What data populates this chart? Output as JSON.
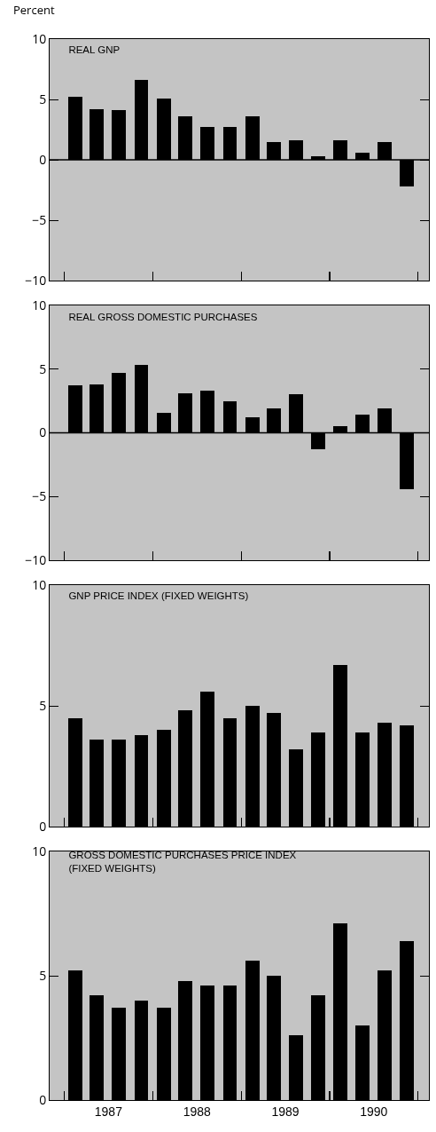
{
  "chart_data": [
    {
      "type": "bar",
      "title": "REAL GNP",
      "ylabel": "Percent",
      "color": "#000000",
      "x": [
        "1987-02-15",
        "1987-05-15",
        "1987-08-15",
        "1987-11-15",
        "1988-02-15",
        "1988-05-15",
        "1988-08-15",
        "1988-11-15",
        "1989-02-15",
        "1989-05-15",
        "1989-08-15",
        "1989-11-15",
        "1990-02-15",
        "1990-05-15",
        "1990-08-15",
        "1990-11-15"
      ],
      "values": [
        5.2,
        4.2,
        4.1,
        6.6,
        5.1,
        3.6,
        2.7,
        2.7,
        3.6,
        1.5,
        1.6,
        0.3,
        1.6,
        0.6,
        1.5,
        -2.2
      ],
      "xlim": [
        "1986-11-01",
        "1991-02-15"
      ],
      "xticks": [
        {
          "value": "1987-01-01",
          "label": null
        },
        {
          "value": "1988-01-01",
          "label": null
        },
        {
          "value": "1989-01-01",
          "label": null
        },
        {
          "value": "1990-01-01",
          "label": null
        },
        {
          "value": "1991-01-01",
          "label": null
        }
      ],
      "ylim": [
        -10,
        10
      ],
      "yticks": [
        -10,
        -5,
        0,
        5,
        10
      ],
      "tick_labels": "y",
      "grid": false,
      "ref_lines": [
        {
          "axis": "y",
          "value": 0,
          "color": "#000000"
        }
      ]
    },
    {
      "type": "bar",
      "title": "REAL GROSS DOMESTIC PURCHASES",
      "color": "#000000",
      "x": [
        "1987-02-15",
        "1987-05-15",
        "1987-08-15",
        "1987-11-15",
        "1988-02-15",
        "1988-05-15",
        "1988-08-15",
        "1988-11-15",
        "1989-02-15",
        "1989-05-15",
        "1989-08-15",
        "1989-11-15",
        "1990-02-15",
        "1990-05-15",
        "1990-08-15",
        "1990-11-15"
      ],
      "values": [
        3.7,
        3.8,
        4.7,
        5.3,
        1.6,
        3.1,
        3.3,
        2.5,
        1.2,
        1.9,
        3.0,
        -1.3,
        0.5,
        1.4,
        1.9,
        -4.4
      ],
      "xlim": [
        "1986-11-01",
        "1991-02-15"
      ],
      "xticks": [
        {
          "value": "1987-01-01",
          "label": null
        },
        {
          "value": "1988-01-01",
          "label": null
        },
        {
          "value": "1989-01-01",
          "label": null
        },
        {
          "value": "1990-01-01",
          "label": null
        },
        {
          "value": "1991-01-01",
          "label": null
        }
      ],
      "ylim": [
        -10,
        10
      ],
      "yticks": [
        -10,
        -5,
        0,
        5,
        10
      ],
      "tick_labels": "y",
      "grid": false,
      "ref_lines": [
        {
          "axis": "y",
          "value": 0,
          "color": "#000000"
        }
      ]
    },
    {
      "type": "bar",
      "title": "GNP PRICE INDEX (FIXED WEIGHTS)",
      "color": "#000000",
      "x": [
        "1987-02-15",
        "1987-05-15",
        "1987-08-15",
        "1987-11-15",
        "1988-02-15",
        "1988-05-15",
        "1988-08-15",
        "1988-11-15",
        "1989-02-15",
        "1989-05-15",
        "1989-08-15",
        "1989-11-15",
        "1990-02-15",
        "1990-05-15",
        "1990-08-15",
        "1990-11-15"
      ],
      "values": [
        4.5,
        3.6,
        3.6,
        3.8,
        4.0,
        4.8,
        5.6,
        4.5,
        5.0,
        4.7,
        3.2,
        3.9,
        6.7,
        3.9,
        4.3,
        4.2
      ],
      "xlim": [
        "1986-11-01",
        "1991-02-15"
      ],
      "xticks": [
        {
          "value": "1987-01-01",
          "label": null
        },
        {
          "value": "1988-01-01",
          "label": null
        },
        {
          "value": "1989-01-01",
          "label": null
        },
        {
          "value": "1990-01-01",
          "label": null
        },
        {
          "value": "1991-01-01",
          "label": null
        }
      ],
      "ylim": [
        0,
        10
      ],
      "yticks": [
        0,
        5,
        10
      ],
      "tick_labels": "y",
      "grid": false
    },
    {
      "type": "bar",
      "title": "GROSS DOMESTIC PURCHASES PRICE INDEX\n(FIXED WEIGHTS)",
      "color": "#000000",
      "x": [
        "1987-02-15",
        "1987-05-15",
        "1987-08-15",
        "1987-11-15",
        "1988-02-15",
        "1988-05-15",
        "1988-08-15",
        "1988-11-15",
        "1989-02-15",
        "1989-05-15",
        "1989-08-15",
        "1989-11-15",
        "1990-02-15",
        "1990-05-15",
        "1990-08-15",
        "1990-11-15"
      ],
      "values": [
        5.2,
        4.2,
        3.7,
        4.0,
        3.7,
        4.8,
        4.6,
        4.6,
        5.6,
        5.0,
        2.6,
        4.2,
        7.1,
        3.0,
        5.2,
        6.4
      ],
      "xlim": [
        "1986-11-01",
        "1991-02-15"
      ],
      "xticks": [
        {
          "value": "1987-01-01",
          "label": null
        },
        {
          "value": "1987-07-02",
          "label": "1987"
        },
        {
          "value": "1988-01-01",
          "label": null
        },
        {
          "value": "1988-07-02",
          "label": "1988"
        },
        {
          "value": "1989-01-01",
          "label": null
        },
        {
          "value": "1989-07-02",
          "label": "1989"
        },
        {
          "value": "1990-01-01",
          "label": null
        },
        {
          "value": "1990-07-02",
          "label": "1990"
        },
        {
          "value": "1991-01-01",
          "label": null
        }
      ],
      "ylim": [
        0,
        10
      ],
      "yticks": [
        0,
        5,
        10
      ],
      "grid": false
    }
  ]
}
